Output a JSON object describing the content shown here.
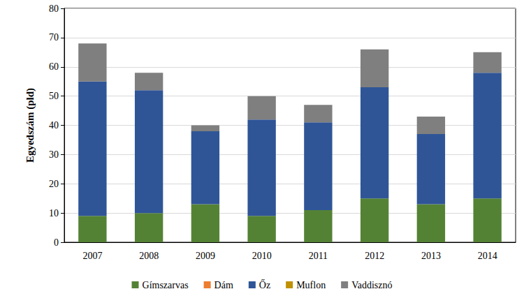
{
  "chart_data": {
    "type": "bar",
    "stacked": true,
    "grid": true,
    "legend": "bottom",
    "y_label": "Egyedszám (pld)",
    "categories": [
      "2007",
      "2008",
      "2009",
      "2010",
      "2011",
      "2012",
      "2013",
      "2014"
    ],
    "series": [
      {
        "name": "Gímszarvas",
        "color": "#548235",
        "values": [
          9,
          10,
          13,
          9,
          11,
          15,
          13,
          15
        ]
      },
      {
        "name": "Dám",
        "color": "#ED7D31",
        "values": [
          0,
          0,
          0,
          0,
          0,
          0,
          0,
          0
        ]
      },
      {
        "name": "Őz",
        "color": "#2F5597",
        "values": [
          46,
          42,
          25,
          33,
          30,
          38,
          24,
          43
        ]
      },
      {
        "name": "Muflon",
        "color": "#BF9000",
        "values": [
          0,
          0,
          0,
          0,
          0,
          0,
          0,
          0
        ]
      },
      {
        "name": "Vaddisznó",
        "color": "#7F7F7F",
        "values": [
          13,
          6,
          2,
          8,
          6,
          13,
          6,
          7
        ]
      }
    ],
    "ylim": [
      0,
      80
    ],
    "yticks": [
      0,
      10,
      20,
      30,
      40,
      50,
      60,
      70,
      80
    ]
  }
}
